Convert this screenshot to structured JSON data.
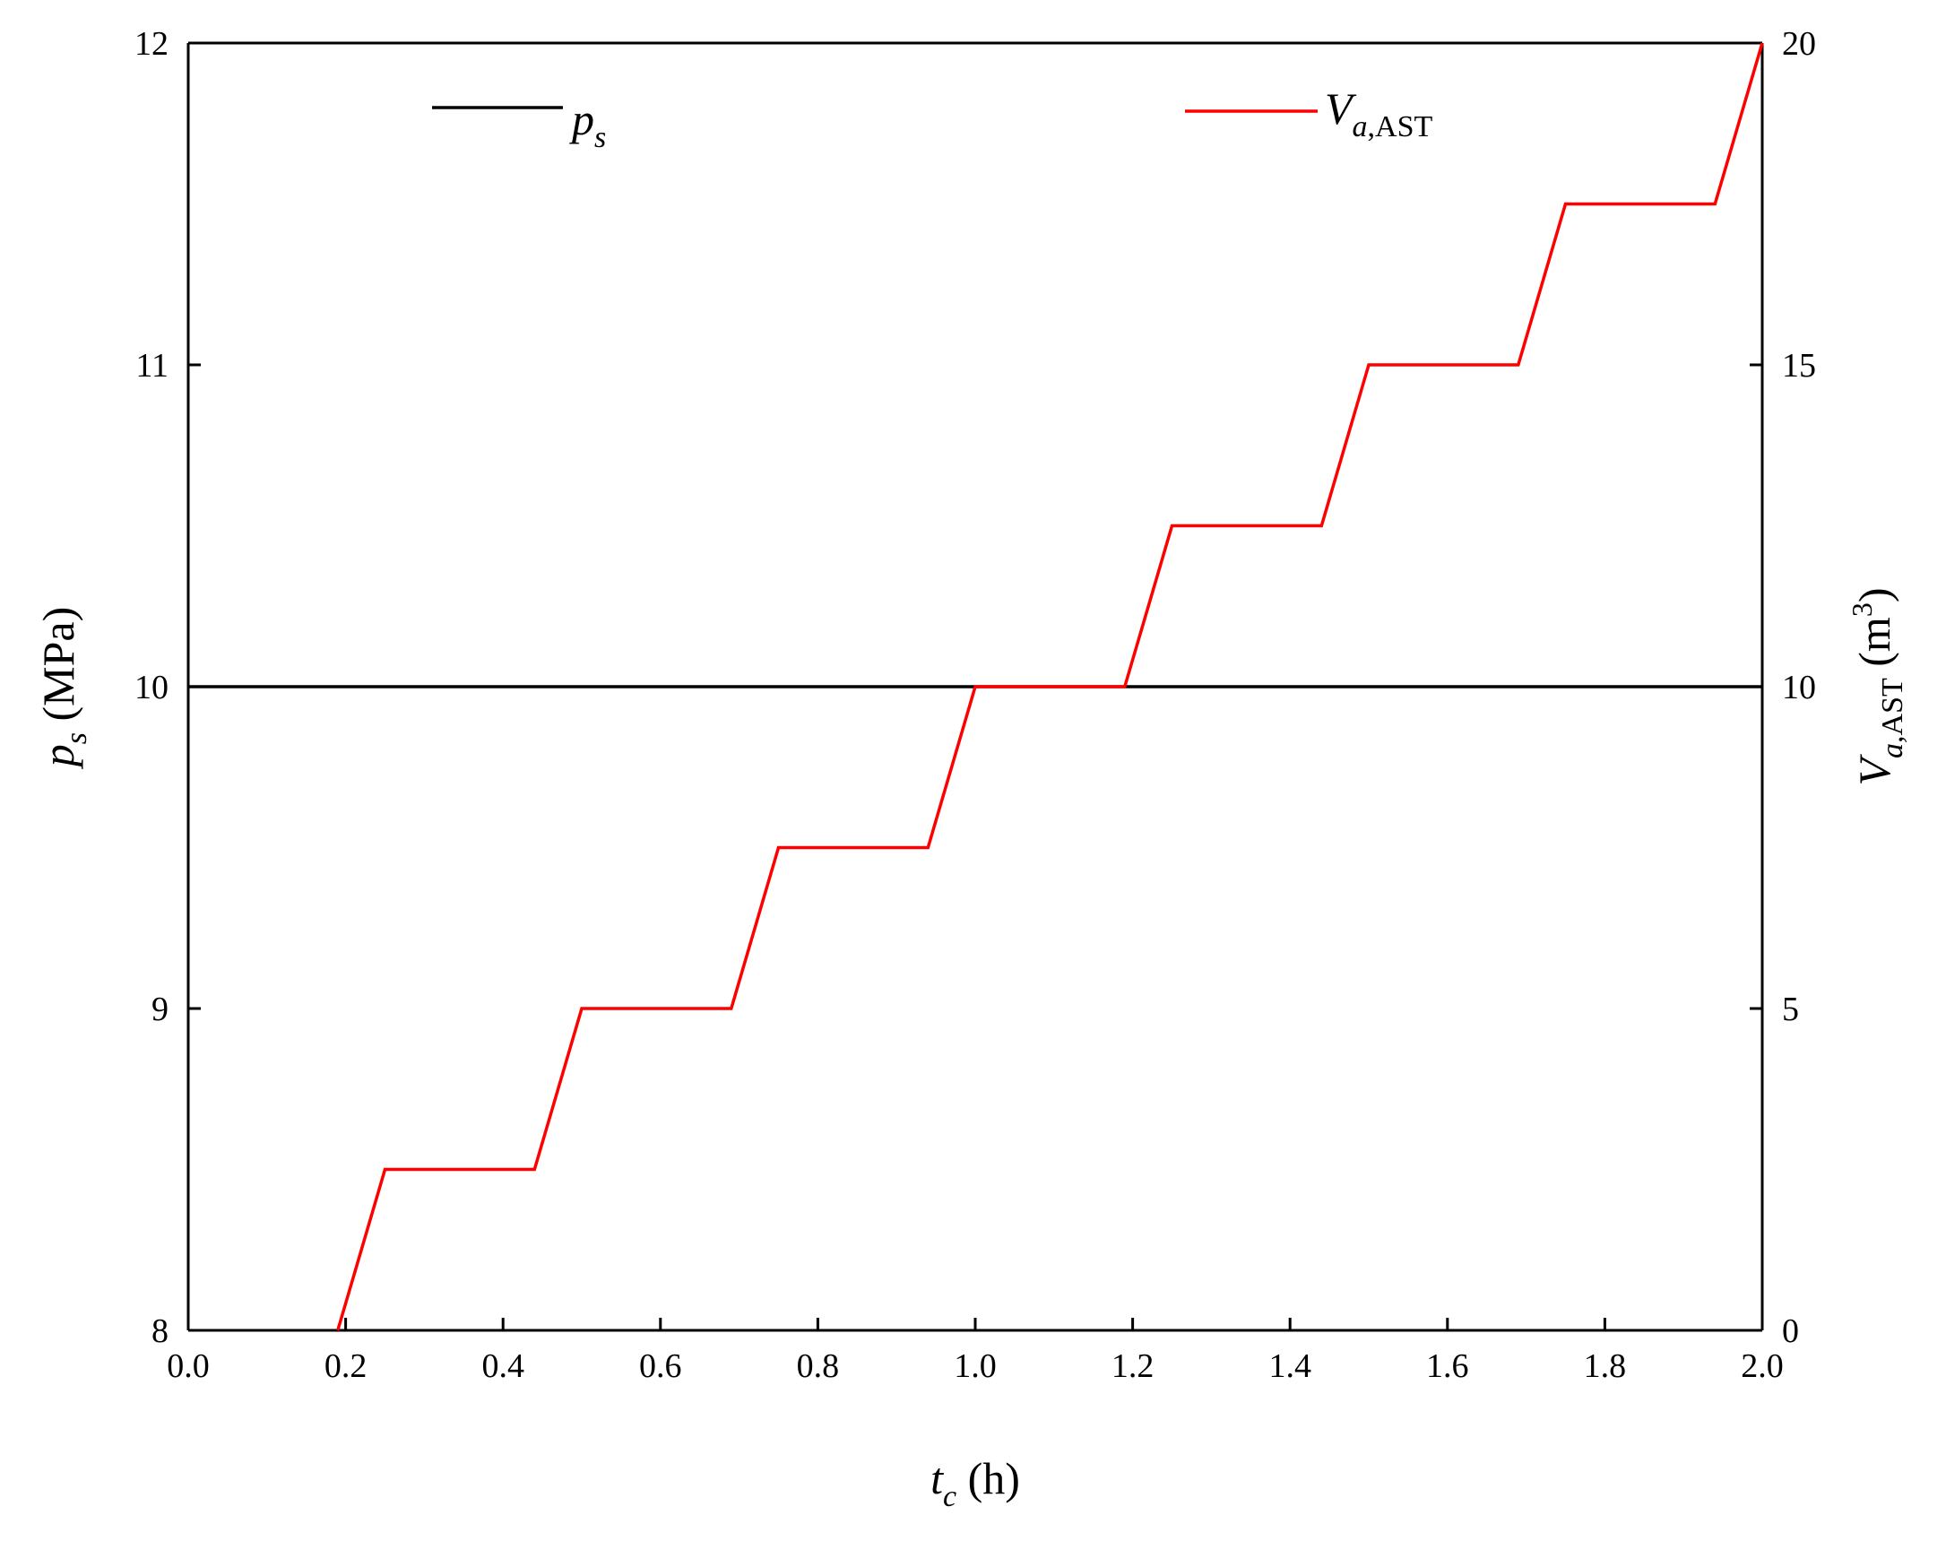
{
  "chart_data": {
    "type": "line",
    "title": "",
    "xlabel": {
      "main": "t",
      "sub": "c",
      "unit": " (h)"
    },
    "ylabel_left": {
      "main": "p",
      "sub": "s",
      "unit": " (MPa)"
    },
    "ylabel_right": {
      "main": "V",
      "sub": "a,",
      "sub2": "AST",
      "unit_pre": " (m",
      "unit_sup": "3",
      "unit_post": ")"
    },
    "xlim": [
      0.0,
      2.0
    ],
    "ylim_left": [
      8,
      12
    ],
    "ylim_right": [
      0,
      20
    ],
    "x_ticks": [
      "0.0",
      "0.2",
      "0.4",
      "0.6",
      "0.8",
      "1.0",
      "1.2",
      "1.4",
      "1.6",
      "1.8",
      "2.0"
    ],
    "y_left_ticks": [
      "8",
      "9",
      "10",
      "11",
      "12"
    ],
    "y_right_ticks": [
      "0",
      "5",
      "10",
      "15",
      "20"
    ],
    "grid": false,
    "series": [
      {
        "name_main": "p",
        "name_sub": "s",
        "axis": "left",
        "color": "#000000",
        "x": [
          0.0,
          2.0
        ],
        "y": [
          10,
          10
        ]
      },
      {
        "name_main": "V",
        "name_sub": "a,AST",
        "axis": "right",
        "color": "#ff0000",
        "x": [
          0.19,
          0.25,
          0.44,
          0.5,
          0.69,
          0.75,
          0.94,
          1.0,
          1.19,
          1.25,
          1.44,
          1.5,
          1.69,
          1.75,
          1.94,
          2.0
        ],
        "y": [
          0,
          2.5,
          2.5,
          5,
          5,
          7.5,
          7.5,
          10,
          10,
          12.5,
          12.5,
          15,
          15,
          17.5,
          17.5,
          20
        ]
      }
    ],
    "legend": "top"
  }
}
